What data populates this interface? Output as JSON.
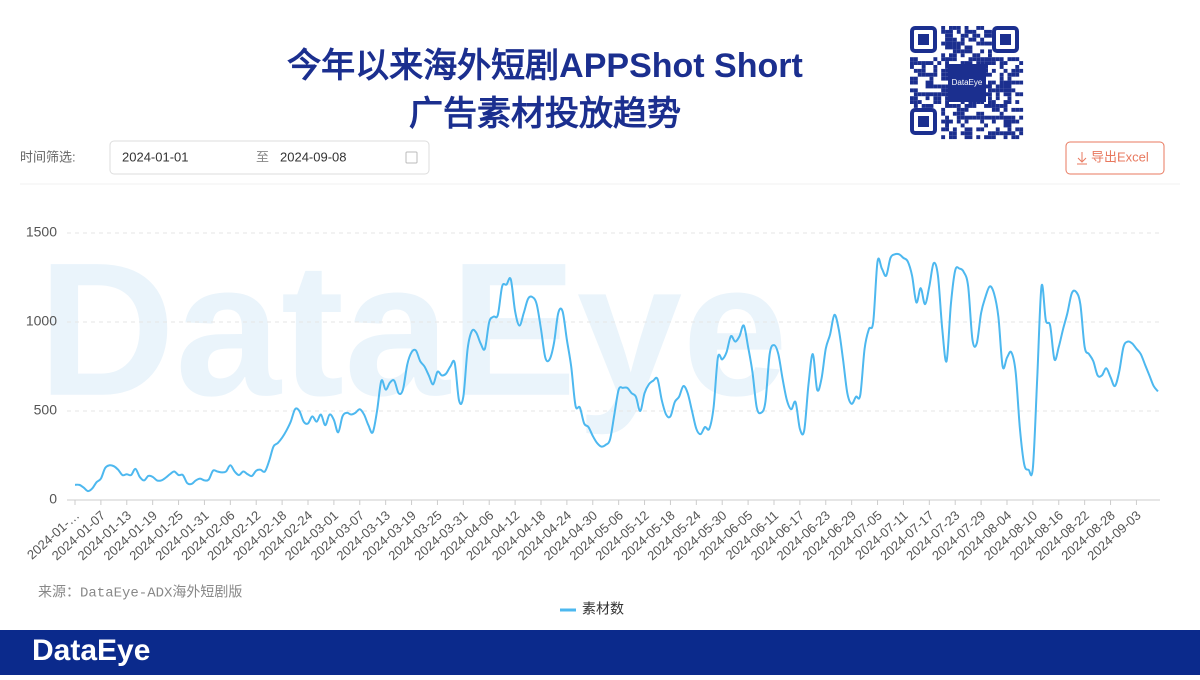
{
  "header": {
    "title_line1": "今年以来海外短剧APPShot Short",
    "title_line2": "广告素材投放趋势",
    "qr_label": "DataEye"
  },
  "filter": {
    "label": "时间筛选:",
    "start": "2024-01-01",
    "separator": "至",
    "end": "2024-09-08",
    "export": "导出Excel"
  },
  "source": "来源：DataEye-ADX海外短剧版",
  "watermark": "DataEye",
  "footer": "DataEye",
  "chart_data": {
    "type": "line",
    "ylim": [
      0,
      1500
    ],
    "yticks": [
      0,
      500,
      1000,
      1500
    ],
    "grid": true,
    "legend": "bottom",
    "categories": [
      "2024-01-…",
      null,
      null,
      null,
      null,
      null,
      "2024-01-07",
      null,
      null,
      null,
      null,
      null,
      "2024-01-13",
      null,
      null,
      null,
      null,
      null,
      "2024-01-19",
      null,
      null,
      null,
      null,
      null,
      "2024-01-25",
      null,
      null,
      null,
      null,
      null,
      "2024-01-31",
      null,
      null,
      null,
      null,
      null,
      "2024-02-06",
      null,
      null,
      null,
      null,
      null,
      "2024-02-12",
      null,
      null,
      null,
      null,
      null,
      "2024-02-18",
      null,
      null,
      null,
      null,
      null,
      "2024-02-24",
      null,
      null,
      null,
      null,
      null,
      "2024-03-01",
      null,
      null,
      null,
      null,
      null,
      "2024-03-07",
      null,
      null,
      null,
      null,
      null,
      "2024-03-13",
      null,
      null,
      null,
      null,
      null,
      "2024-03-19",
      null,
      null,
      null,
      null,
      null,
      "2024-03-25",
      null,
      null,
      null,
      null,
      null,
      "2024-03-31",
      null,
      null,
      null,
      null,
      null,
      "2024-04-06",
      null,
      null,
      null,
      null,
      null,
      "2024-04-12",
      null,
      null,
      null,
      null,
      null,
      "2024-04-18",
      null,
      null,
      null,
      null,
      null,
      "2024-04-24",
      null,
      null,
      null,
      null,
      null,
      "2024-04-30",
      null,
      null,
      null,
      null,
      null,
      "2024-05-06",
      null,
      null,
      null,
      null,
      null,
      "2024-05-12",
      null,
      null,
      null,
      null,
      null,
      "2024-05-18",
      null,
      null,
      null,
      null,
      null,
      "2024-05-24",
      null,
      null,
      null,
      null,
      null,
      "2024-05-30",
      null,
      null,
      null,
      null,
      null,
      "2024-06-05",
      null,
      null,
      null,
      null,
      null,
      "2024-06-11",
      null,
      null,
      null,
      null,
      null,
      "2024-06-17",
      null,
      null,
      null,
      null,
      null,
      "2024-06-23",
      null,
      null,
      null,
      null,
      null,
      "2024-06-29",
      null,
      null,
      null,
      null,
      null,
      "2024-07-05",
      null,
      null,
      null,
      null,
      null,
      "2024-07-11",
      null,
      null,
      null,
      null,
      null,
      "2024-07-17",
      null,
      null,
      null,
      null,
      null,
      "2024-07-23",
      null,
      null,
      null,
      null,
      null,
      "2024-07-29",
      null,
      null,
      null,
      null,
      null,
      "2024-08-04",
      null,
      null,
      null,
      null,
      null,
      "2024-08-10",
      null,
      null,
      null,
      null,
      null,
      "2024-08-16",
      null,
      null,
      null,
      null,
      null,
      "2024-08-22",
      null,
      null,
      null,
      null,
      null,
      "2024-08-28",
      null,
      null,
      null,
      null,
      null,
      "2024-09-03",
      null,
      null,
      null,
      null,
      null
    ],
    "series": [
      {
        "name": "素材数",
        "color": "#4db8ef",
        "values": [
          85,
          85,
          70,
          50,
          65,
          100,
          120,
          180,
          195,
          190,
          170,
          140,
          145,
          140,
          175,
          130,
          110,
          135,
          130,
          110,
          110,
          125,
          145,
          160,
          140,
          140,
          95,
          90,
          110,
          120,
          110,
          115,
          165,
          160,
          155,
          160,
          195,
          160,
          140,
          160,
          145,
          135,
          165,
          170,
          160,
          220,
          300,
          320,
          350,
          390,
          440,
          510,
          500,
          440,
          430,
          470,
          440,
          480,
          420,
          480,
          450,
          380,
          470,
          490,
          480,
          490,
          510,
          480,
          420,
          380,
          500,
          670,
          620,
          660,
          670,
          600,
          620,
          760,
          830,
          840,
          780,
          750,
          700,
          650,
          720,
          700,
          710,
          750,
          770,
          560,
          580,
          850,
          950,
          940,
          880,
          850,
          1000,
          1030,
          1040,
          1200,
          1210,
          1240,
          1060,
          980,
          1050,
          1130,
          1140,
          1100,
          960,
          800,
          790,
          880,
          1050,
          1060,
          900,
          750,
          530,
          520,
          430,
          410,
          360,
          320,
          300,
          310,
          340,
          480,
          620,
          630,
          630,
          600,
          580,
          500,
          600,
          650,
          670,
          680,
          560,
          480,
          470,
          550,
          580,
          640,
          600,
          500,
          400,
          370,
          410,
          400,
          520,
          800,
          790,
          830,
          920,
          890,
          920,
          980,
          860,
          720,
          520,
          490,
          550,
          820,
          870,
          820,
          680,
          560,
          510,
          550,
          400,
          390,
          650,
          820,
          620,
          680,
          850,
          930,
          1040,
          960,
          790,
          600,
          540,
          580,
          590,
          850,
          960,
          1000,
          1340,
          1300,
          1260,
          1360,
          1380,
          1380,
          1360,
          1340,
          1260,
          1110,
          1190,
          1100,
          1200,
          1330,
          1260,
          960,
          780,
          1100,
          1290,
          1300,
          1280,
          1200,
          900,
          880,
          1050,
          1140,
          1200,
          1160,
          1030,
          750,
          800,
          830,
          720,
          400,
          200,
          170,
          180,
          680,
          1200,
          1010,
          980,
          790,
          860,
          960,
          1050,
          1160,
          1170,
          1100,
          860,
          820,
          780,
          700,
          700,
          740,
          690,
          640,
          720,
          860,
          890,
          880,
          850,
          820,
          760,
          700,
          640,
          610
        ]
      }
    ]
  }
}
